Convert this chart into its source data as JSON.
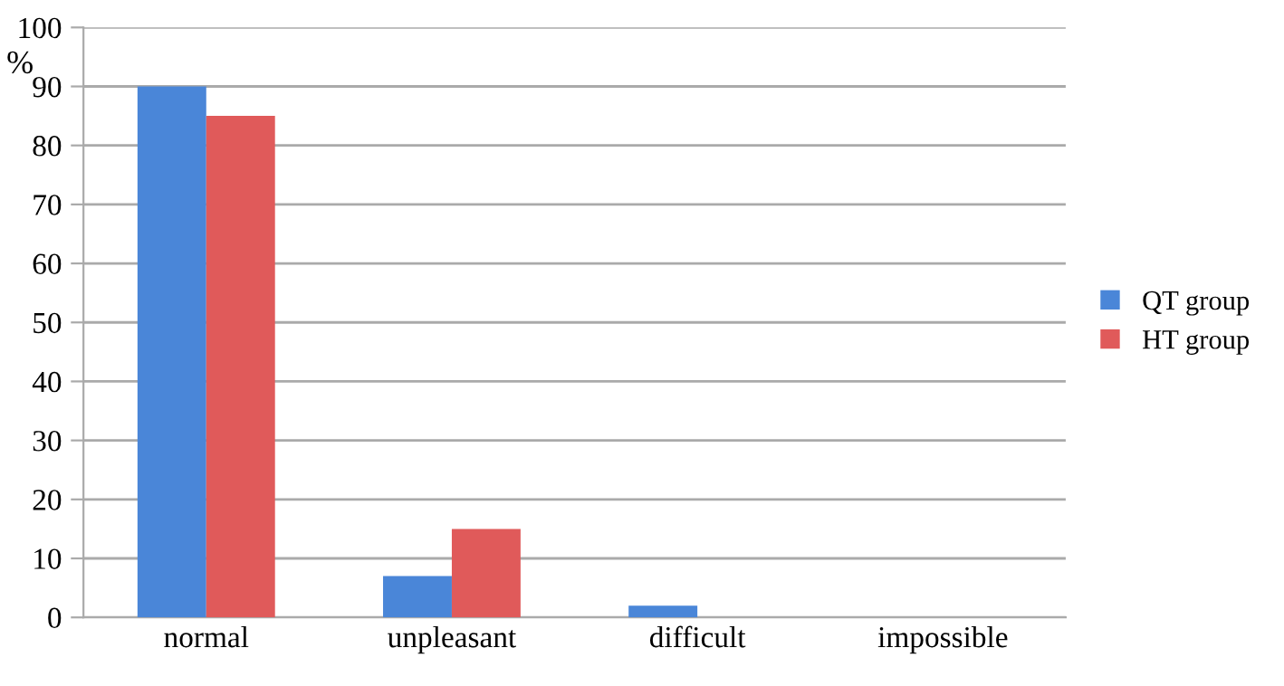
{
  "chart_data": {
    "type": "bar",
    "ylabel": "%",
    "categories": [
      "normal",
      "unpleasant",
      "difficult",
      "impossible"
    ],
    "series": [
      {
        "name": "QT group",
        "color": "#4a86d8",
        "values": [
          90,
          7,
          2,
          0
        ]
      },
      {
        "name": "HT group",
        "color": "#e05a5a",
        "values": [
          85,
          15,
          0,
          0
        ]
      }
    ],
    "ylim": [
      0,
      100
    ],
    "yticks": [
      0,
      10,
      20,
      30,
      40,
      50,
      60,
      70,
      80,
      90,
      100
    ],
    "grid": "y",
    "legend": "right"
  }
}
